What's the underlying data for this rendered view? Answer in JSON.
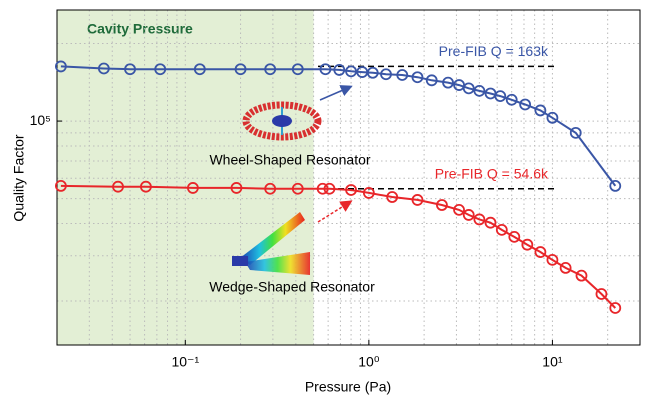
{
  "chart_data": {
    "type": "line",
    "xlabel": "Pressure (Pa)",
    "ylabel": "Quality Factor",
    "xscale": "log",
    "yscale": "log",
    "grid": true,
    "xlim": [
      0.02,
      30
    ],
    "ylim": [
      13500,
      270000
    ],
    "xticks": [
      {
        "value": 0.1,
        "label": "10⁻¹"
      },
      {
        "value": 1,
        "label": "10⁰"
      },
      {
        "value": 10,
        "label": "10¹"
      }
    ],
    "yticks": [
      {
        "value": 100000,
        "label": "10⁵"
      }
    ],
    "xminor": [
      0.03,
      0.04,
      0.05,
      0.06,
      0.07,
      0.08,
      0.09,
      0.2,
      0.3,
      0.4,
      0.5,
      0.6,
      0.7,
      0.8,
      0.9,
      2,
      3,
      4,
      5,
      6,
      7,
      8,
      9,
      20
    ],
    "yminor": [
      20000,
      30000,
      40000,
      50000,
      60000,
      70000,
      80000,
      90000,
      200000
    ],
    "shade": {
      "label": "Cavity Pressure",
      "xmax": 0.5,
      "color": "#e3efd5"
    },
    "reference_lines": [
      {
        "label": "Pre-FIB Q = 163k",
        "value": 163000,
        "color": "#3a56a6"
      },
      {
        "label": "Pre-FIB Q = 54.6k",
        "value": 54600,
        "color": "#e8262a"
      }
    ],
    "annotations": [
      "Wheel-Shaped Resonator",
      "Wedge-Shaped Resonator"
    ],
    "series": [
      {
        "color": "#3a56a6",
        "x": [
          0.021,
          0.036,
          0.05,
          0.073,
          0.12,
          0.2,
          0.29,
          0.41,
          0.58,
          0.69,
          0.8,
          0.92,
          1.05,
          1.24,
          1.52,
          1.84,
          2.2,
          2.7,
          3.1,
          3.5,
          4.0,
          4.6,
          5.2,
          6.0,
          7.1,
          8.6,
          10,
          13.4,
          22
        ],
        "values": [
          163000,
          160000,
          159000,
          159000,
          159000,
          159000,
          159000,
          159000,
          159000,
          158000,
          156000,
          155000,
          154000,
          152000,
          151000,
          148000,
          144000,
          141000,
          138000,
          134000,
          131000,
          128000,
          125000,
          121000,
          116000,
          110000,
          103000,
          90000,
          56000
        ]
      },
      {
        "color": "#e8262a",
        "x": [
          0.021,
          0.043,
          0.061,
          0.11,
          0.19,
          0.29,
          0.41,
          0.56,
          0.61,
          0.8,
          1.0,
          1.34,
          1.84,
          2.5,
          3.1,
          3.5,
          4.0,
          4.6,
          5.3,
          6.2,
          7.3,
          8.6,
          10,
          11.8,
          14.4,
          18.5,
          22
        ],
        "values": [
          56000,
          55600,
          55600,
          55000,
          55000,
          54600,
          54600,
          54600,
          54600,
          54000,
          52600,
          50700,
          49400,
          47200,
          45200,
          43200,
          41500,
          40300,
          37800,
          35500,
          33100,
          31000,
          28900,
          26900,
          25100,
          21300,
          18800
        ]
      }
    ]
  }
}
